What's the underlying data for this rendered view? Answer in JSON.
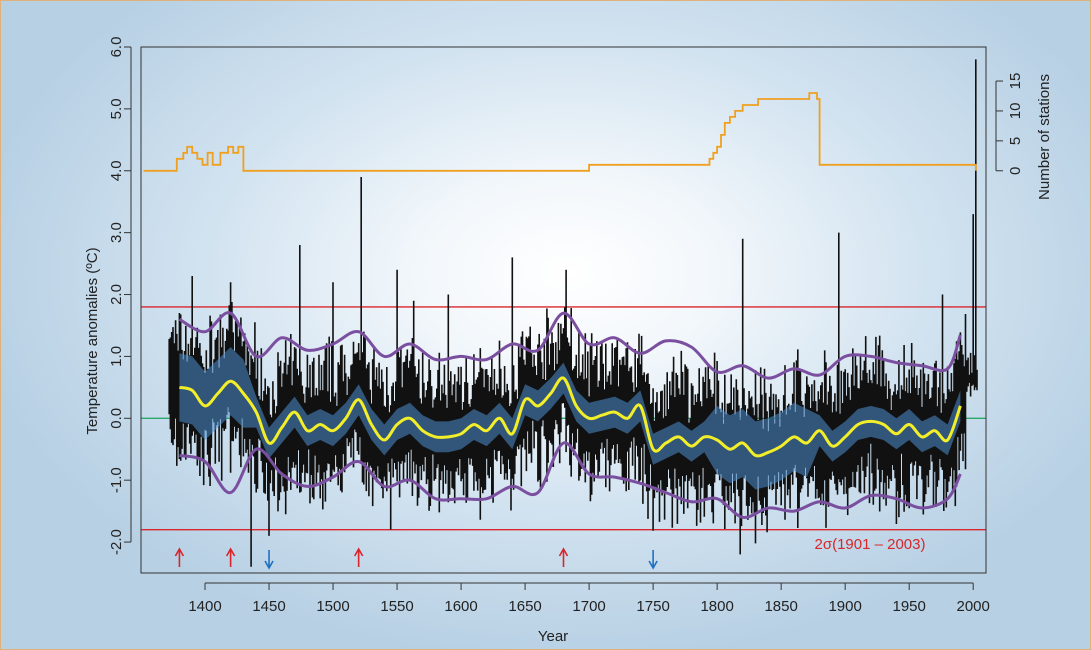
{
  "chart_data": {
    "type": "line",
    "title": "",
    "xlabel": "Year",
    "ylabel": "Temperature anomalies (ºC)",
    "y2label": "Number of stations",
    "xlim": [
      1350,
      2010
    ],
    "ylim": [
      -2.5,
      6.0
    ],
    "y2lim": [
      0,
      15
    ],
    "x_ticks": [
      1400,
      1450,
      1500,
      1550,
      1600,
      1650,
      1700,
      1750,
      1800,
      1850,
      1900,
      1950,
      2000
    ],
    "x_tick_labels": [
      "1400",
      "1450",
      "1500",
      "1550",
      "1600",
      "1650",
      "1700",
      "1750",
      "1800",
      "1850",
      "1900",
      "1950",
      "2000"
    ],
    "y_ticks": [
      -2.0,
      -1.0,
      0.0,
      1.0,
      2.0,
      3.0,
      4.0,
      5.0,
      6.0
    ],
    "y_tick_labels": [
      "-2.0",
      "-1.0",
      "0.0",
      "1.0",
      "2.0",
      "3.0",
      "4.0",
      "5.0",
      "6.0"
    ],
    "y2_ticks": [
      0,
      5,
      10,
      15
    ],
    "y2_tick_labels": [
      "0",
      "5",
      "10",
      "15"
    ],
    "grid": false,
    "reference_lines": {
      "zero": {
        "value": 0.0,
        "color": "#2aa86a"
      },
      "upper_2sigma": {
        "value": 1.8,
        "color": "#d9252b"
      },
      "lower_2sigma": {
        "value": -1.8,
        "color": "#d9252b"
      }
    },
    "annotation_label": "2σ(1901 – 2003)",
    "annotation_color": "#d9252b",
    "arrows_up": [
      1380,
      1420,
      1520,
      1680
    ],
    "arrows_down": [
      1450,
      1750
    ],
    "arrow_up_color": "#d9252b",
    "arrow_down_color": "#1f6fc0",
    "colors": {
      "annual": "#111111",
      "band": "#4f8fd0",
      "smooth": "#f2ee2a",
      "envelope": "#7b4fa0",
      "stations": "#f0a020",
      "axis": "#333333"
    },
    "series": [
      {
        "type": "smoothed",
        "x": [
          1380,
          1390,
          1400,
          1410,
          1420,
          1430,
          1440,
          1450,
          1460,
          1470,
          1480,
          1490,
          1500,
          1510,
          1520,
          1530,
          1540,
          1550,
          1560,
          1570,
          1580,
          1590,
          1600,
          1610,
          1620,
          1630,
          1640,
          1650,
          1660,
          1670,
          1680,
          1690,
          1700,
          1710,
          1720,
          1730,
          1740,
          1750,
          1760,
          1770,
          1780,
          1790,
          1800,
          1810,
          1820,
          1830,
          1840,
          1850,
          1860,
          1870,
          1880,
          1890,
          1900,
          1910,
          1920,
          1930,
          1940,
          1950,
          1960,
          1970,
          1980,
          1990
        ],
        "values": [
          0.5,
          0.45,
          0.2,
          0.4,
          0.6,
          0.4,
          0.1,
          -0.4,
          -0.15,
          0.1,
          -0.2,
          -0.1,
          -0.2,
          0.0,
          0.3,
          -0.1,
          -0.35,
          -0.1,
          0.0,
          -0.2,
          -0.3,
          -0.3,
          -0.25,
          -0.1,
          -0.2,
          0.0,
          -0.25,
          0.3,
          0.2,
          0.4,
          0.65,
          0.2,
          0.0,
          0.05,
          0.1,
          0.0,
          0.2,
          -0.5,
          -0.4,
          -0.3,
          -0.45,
          -0.3,
          -0.35,
          -0.5,
          -0.4,
          -0.6,
          -0.55,
          -0.45,
          -0.3,
          -0.4,
          -0.2,
          -0.45,
          -0.3,
          -0.1,
          -0.05,
          -0.1,
          -0.25,
          -0.1,
          -0.3,
          -0.2,
          -0.35,
          0.2
        ]
      },
      {
        "type": "upper_envelope",
        "x": [
          1380,
          1400,
          1420,
          1440,
          1460,
          1480,
          1500,
          1520,
          1540,
          1560,
          1580,
          1600,
          1620,
          1640,
          1660,
          1680,
          1700,
          1720,
          1740,
          1760,
          1780,
          1800,
          1820,
          1840,
          1860,
          1880,
          1900,
          1920,
          1940,
          1960,
          1980,
          1990
        ],
        "values": [
          1.6,
          1.4,
          1.7,
          1.0,
          1.3,
          1.1,
          1.2,
          1.4,
          1.0,
          1.2,
          0.95,
          1.0,
          0.95,
          1.2,
          1.1,
          1.7,
          1.2,
          1.3,
          1.05,
          1.25,
          1.15,
          0.75,
          0.85,
          0.65,
          0.8,
          0.7,
          1.0,
          1.0,
          0.9,
          0.85,
          0.8,
          1.35
        ]
      },
      {
        "type": "lower_envelope",
        "x": [
          1380,
          1400,
          1420,
          1440,
          1460,
          1480,
          1500,
          1520,
          1540,
          1560,
          1580,
          1600,
          1620,
          1640,
          1660,
          1680,
          1700,
          1720,
          1740,
          1760,
          1780,
          1800,
          1820,
          1840,
          1860,
          1880,
          1900,
          1920,
          1940,
          1960,
          1980,
          1990
        ],
        "values": [
          -0.6,
          -0.7,
          -1.2,
          -0.5,
          -0.9,
          -1.1,
          -0.95,
          -0.7,
          -1.1,
          -1.0,
          -1.3,
          -1.3,
          -1.3,
          -1.1,
          -1.2,
          -0.4,
          -0.9,
          -0.95,
          -1.05,
          -1.2,
          -1.35,
          -1.3,
          -1.6,
          -1.45,
          -1.5,
          -1.35,
          -1.45,
          -1.25,
          -1.3,
          -1.45,
          -1.3,
          -0.9
        ]
      },
      {
        "type": "number_of_stations",
        "x": [
          1352,
          1374,
          1378,
          1383,
          1386,
          1390,
          1394,
          1398,
          1402,
          1406,
          1412,
          1418,
          1422,
          1426,
          1430,
          1696,
          1700,
          1712,
          1722,
          1730,
          1786,
          1794,
          1797,
          1800,
          1803,
          1806,
          1810,
          1814,
          1820,
          1826,
          1832,
          1838,
          1846,
          1858,
          1866,
          1872,
          1878,
          1880,
          2002
        ],
        "values": [
          0,
          0,
          2,
          3,
          4,
          3,
          2,
          1,
          3,
          1,
          3,
          4,
          3,
          4,
          0,
          0,
          1,
          1,
          1,
          1,
          1,
          2,
          3,
          4,
          6,
          8,
          9,
          10,
          11,
          11,
          12,
          12,
          12,
          12,
          12,
          13,
          12,
          1,
          0
        ]
      }
    ]
  }
}
